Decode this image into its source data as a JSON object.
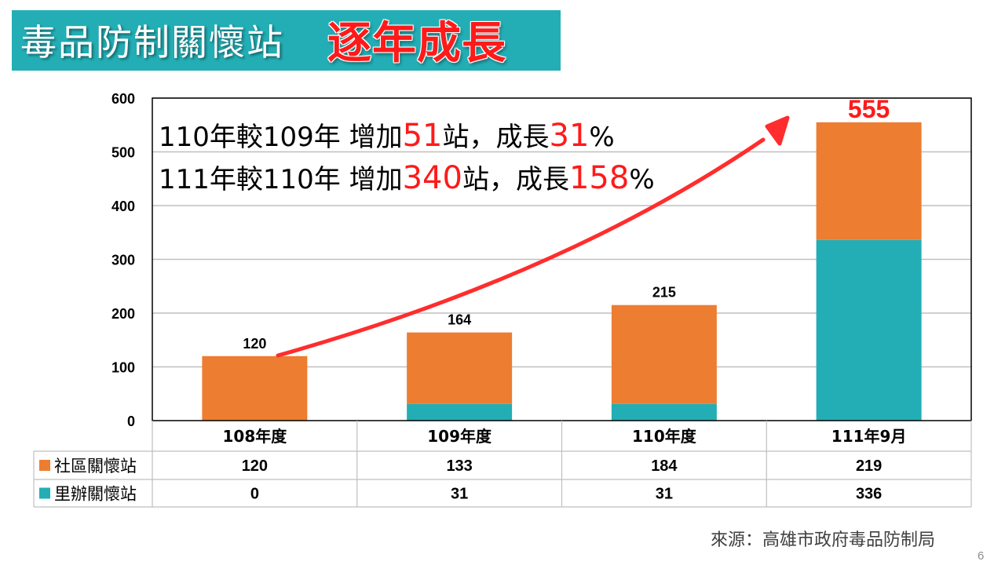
{
  "title": {
    "main": "毒品防制關懷站",
    "accent": "逐年成長"
  },
  "annotations": {
    "line1": {
      "a": "110年較109年 增加",
      "n1": "51",
      "b": "站，成長",
      "n2": "31",
      "c": "%"
    },
    "line2": {
      "a": "111年較110年 增加",
      "n1": "340",
      "b": "站，成長",
      "n2": "158",
      "c": "%"
    }
  },
  "chart_data": {
    "type": "bar",
    "stacked": true,
    "categories": [
      "108年度",
      "109年度",
      "110年度",
      "111年9月"
    ],
    "series": [
      {
        "name": "里辦關懷站",
        "color": "#23aeb5",
        "values": [
          0,
          31,
          31,
          336
        ]
      },
      {
        "name": "社區關懷站",
        "color": "#ed7d31",
        "values": [
          120,
          133,
          184,
          219
        ]
      }
    ],
    "totals": [
      "120",
      "164",
      "215",
      "555"
    ],
    "ylim": [
      0,
      600
    ],
    "yticks": [
      "0",
      "100",
      "200",
      "300",
      "400",
      "500",
      "600"
    ],
    "grid": true,
    "legend_position": "data-table",
    "table_rows": [
      {
        "name": "社區關懷站",
        "color": "#ed7d31",
        "values": [
          "120",
          "133",
          "184",
          "219"
        ]
      },
      {
        "name": "里辦關懷站",
        "color": "#23aeb5",
        "values": [
          "0",
          "31",
          "31",
          "336"
        ]
      }
    ],
    "highlight_total_color": "#ff1a1a"
  },
  "source": "來源：高雄市政府毒品防制局",
  "page_number": "6"
}
